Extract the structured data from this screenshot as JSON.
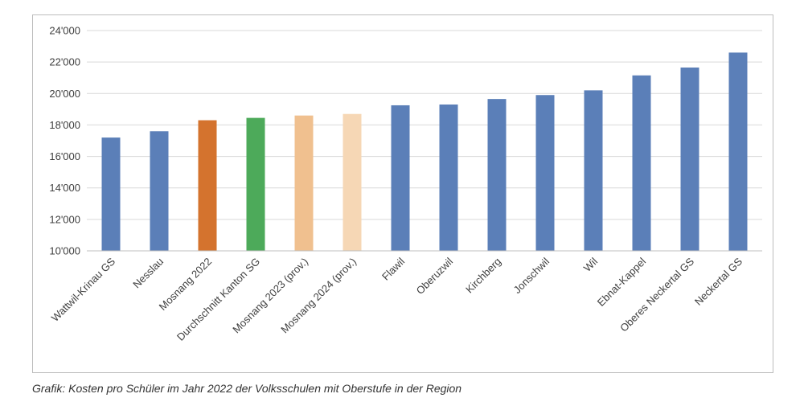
{
  "chart_data": {
    "type": "bar",
    "categories": [
      "Wattwil-Krinau GS",
      "Nesslau",
      "Mosnang 2022",
      "Durchschnitt Kanton SG",
      "Mosnang 2023 (prov.)",
      "Mosnang 2024 (prov.)",
      "Flawil",
      "Oberuzwil",
      "Kirchberg",
      "Jonschwil",
      "Wil",
      "Ebnat-Kappel",
      "Oberes Neckertal GS",
      "Neckertal GS"
    ],
    "values": [
      17200,
      17600,
      18300,
      18450,
      18600,
      18700,
      19250,
      19300,
      19650,
      19900,
      20200,
      21150,
      21650,
      22600
    ],
    "colors": [
      "#5b7fb8",
      "#5b7fb8",
      "#d4732e",
      "#4daa5a",
      "#f0c08f",
      "#f6d7b5",
      "#5b7fb8",
      "#5b7fb8",
      "#5b7fb8",
      "#5b7fb8",
      "#5b7fb8",
      "#5b7fb8",
      "#5b7fb8",
      "#5b7fb8"
    ],
    "ylim": [
      10000,
      24000
    ],
    "yticks": [
      10000,
      12000,
      14000,
      16000,
      18000,
      20000,
      22000,
      24000
    ],
    "ytick_labels": [
      "10'000",
      "12'000",
      "14'000",
      "16'000",
      "18'000",
      "20'000",
      "22'000",
      "24'000"
    ],
    "grid": true,
    "gridline_color": "#d9d9d9",
    "title": "",
    "xlabel": "",
    "ylabel": ""
  },
  "caption": "Grafik: Kosten pro Schüler im Jahr 2022 der Volksschulen mit Oberstufe in der Region"
}
